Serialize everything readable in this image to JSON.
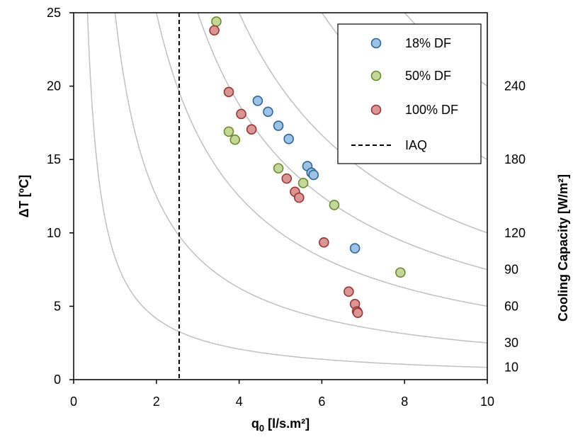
{
  "chart_data": {
    "type": "scatter",
    "xlabel": "q0 [l/s.m²]",
    "xlabel_main": "q",
    "xlabel_sub": "0",
    "xlabel_rest": " [l/s.m²]",
    "ylabel": "ΔT [ºC]",
    "y2label": "Cooling Capacity [W/m²]",
    "xlim": [
      0,
      10
    ],
    "ylim": [
      0,
      25
    ],
    "x_ticks": [
      "0",
      "2",
      "4",
      "6",
      "8",
      "10"
    ],
    "y_ticks": [
      "0",
      "5",
      "10",
      "15",
      "20",
      "25"
    ],
    "grid": false,
    "legend_position": "top-right",
    "capacity_curves": [
      {
        "label": "10",
        "value": 10
      },
      {
        "label": "30",
        "value": 30
      },
      {
        "label": "60",
        "value": 60
      },
      {
        "label": "90",
        "value": 90
      },
      {
        "label": "120",
        "value": 120
      },
      {
        "label": "180",
        "value": 180
      },
      {
        "label": "240",
        "value": 240
      }
    ],
    "capacity_constant": 1.2,
    "reference_line": {
      "name": "IAQ",
      "x": 2.55,
      "style": "dashed"
    },
    "series": [
      {
        "name": "18% DF",
        "color": "#9cc3e5",
        "edge": "#2e6596",
        "points": [
          [
            4.45,
            19.0
          ],
          [
            4.7,
            18.25
          ],
          [
            4.95,
            17.3
          ],
          [
            5.2,
            16.4
          ],
          [
            5.65,
            14.55
          ],
          [
            5.75,
            14.1
          ],
          [
            5.8,
            13.95
          ],
          [
            6.8,
            8.95
          ]
        ]
      },
      {
        "name": "50% DF",
        "color": "#c4d79b",
        "edge": "#6b8a2c",
        "points": [
          [
            3.45,
            24.4
          ],
          [
            3.75,
            16.9
          ],
          [
            3.9,
            16.35
          ],
          [
            4.95,
            14.4
          ],
          [
            5.55,
            13.4
          ],
          [
            6.3,
            11.9
          ],
          [
            7.9,
            7.3
          ]
        ]
      },
      {
        "name": "100% DF",
        "color": "#d99694",
        "edge": "#963634",
        "points": [
          [
            3.4,
            23.8
          ],
          [
            3.75,
            19.6
          ],
          [
            4.05,
            18.1
          ],
          [
            4.3,
            17.05
          ],
          [
            5.15,
            13.7
          ],
          [
            5.35,
            12.8
          ],
          [
            5.45,
            12.4
          ],
          [
            6.05,
            9.35
          ],
          [
            6.65,
            6.0
          ],
          [
            6.8,
            5.15
          ],
          [
            6.85,
            4.65
          ],
          [
            6.87,
            4.55
          ]
        ]
      }
    ]
  }
}
